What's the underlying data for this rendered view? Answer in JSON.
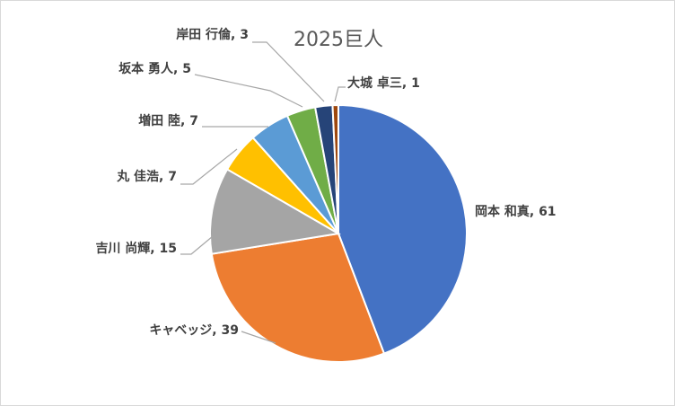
{
  "chart_data": {
    "type": "pie",
    "title": "2025巨人",
    "label_format": "name, value",
    "slices": [
      {
        "name": "岡本 和真",
        "value": 61,
        "color": "#4472C4"
      },
      {
        "name": "キャベッジ",
        "value": 39,
        "color": "#ED7D31"
      },
      {
        "name": "吉川 尚輝",
        "value": 15,
        "color": "#A5A5A5"
      },
      {
        "name": "丸 佳浩",
        "value": 7,
        "color": "#FFC000"
      },
      {
        "name": "増田 陸",
        "value": 7,
        "color": "#5B9BD5"
      },
      {
        "name": "坂本 勇人",
        "value": 5,
        "color": "#70AD47"
      },
      {
        "name": "岸田 行倫",
        "value": 3,
        "color": "#264478"
      },
      {
        "name": "大城 卓三",
        "value": 1,
        "color": "#9E480E"
      }
    ],
    "legend": "none"
  }
}
